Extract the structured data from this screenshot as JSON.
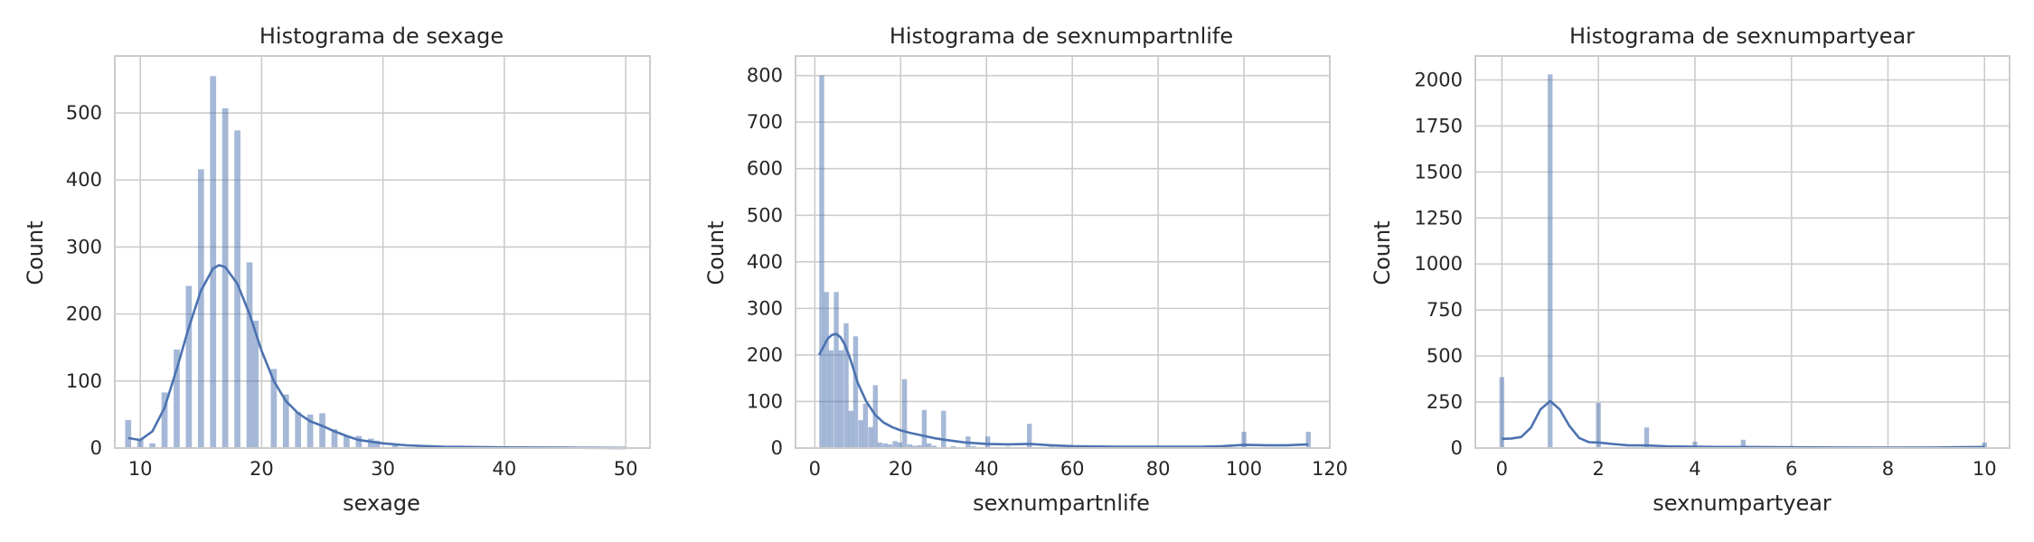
{
  "chart_data": [
    {
      "type": "bar",
      "title": "Histograma de sexage",
      "xlabel": "sexage",
      "ylabel": "Count",
      "xlim": [
        7.9,
        52
      ],
      "ylim": [
        0,
        585
      ],
      "xticks": [
        10,
        20,
        30,
        40,
        50
      ],
      "yticks": [
        0,
        100,
        200,
        300,
        400,
        500
      ],
      "grid": true,
      "bin_width": 0.5,
      "bars": [
        {
          "x": 9,
          "value": 42
        },
        {
          "x": 10,
          "value": 13
        },
        {
          "x": 11,
          "value": 7
        },
        {
          "x": 12,
          "value": 83
        },
        {
          "x": 13,
          "value": 147
        },
        {
          "x": 14,
          "value": 242
        },
        {
          "x": 15,
          "value": 416
        },
        {
          "x": 16,
          "value": 555
        },
        {
          "x": 17,
          "value": 507
        },
        {
          "x": 18,
          "value": 474
        },
        {
          "x": 19,
          "value": 277
        },
        {
          "x": 19.5,
          "value": 190
        },
        {
          "x": 21,
          "value": 118
        },
        {
          "x": 22,
          "value": 80
        },
        {
          "x": 23,
          "value": 54
        },
        {
          "x": 24,
          "value": 50
        },
        {
          "x": 25,
          "value": 52
        },
        {
          "x": 26,
          "value": 28
        },
        {
          "x": 27,
          "value": 18
        },
        {
          "x": 28,
          "value": 18
        },
        {
          "x": 29,
          "value": 14
        },
        {
          "x": 29.5,
          "value": 11
        },
        {
          "x": 31,
          "value": 4
        },
        {
          "x": 33,
          "value": 2
        },
        {
          "x": 35,
          "value": 2
        },
        {
          "x": 38,
          "value": 1
        },
        {
          "x": 40,
          "value": 1
        },
        {
          "x": 45,
          "value": 1
        },
        {
          "x": 50,
          "value": 1
        }
      ],
      "kde": {
        "x": [
          9,
          10,
          11,
          12,
          13,
          14,
          15,
          16,
          16.5,
          17,
          18,
          19,
          20,
          21,
          22,
          23,
          24,
          25,
          26,
          27,
          28,
          30,
          32,
          35,
          40,
          45,
          50
        ],
        "y": [
          15,
          12,
          25,
          60,
          118,
          180,
          235,
          268,
          273,
          270,
          245,
          200,
          145,
          100,
          70,
          52,
          40,
          33,
          25,
          18,
          12,
          7,
          4,
          2,
          1,
          0.5,
          0.2
        ]
      }
    },
    {
      "type": "bar",
      "title": "Histograma de sexnumpartnlife",
      "xlabel": "sexnumpartnlife",
      "ylabel": "Count",
      "xlim": [
        -4.5,
        120
      ],
      "ylim": [
        0,
        842
      ],
      "xticks": [
        0,
        20,
        40,
        60,
        80,
        100,
        120
      ],
      "yticks": [
        0,
        100,
        200,
        300,
        400,
        500,
        600,
        700,
        800
      ],
      "grid": true,
      "bin_width": 1.14,
      "bars": [
        {
          "x": 1.6,
          "value": 800
        },
        {
          "x": 2.7,
          "value": 335
        },
        {
          "x": 3.8,
          "value": 210
        },
        {
          "x": 5,
          "value": 335
        },
        {
          "x": 6.1,
          "value": 210
        },
        {
          "x": 7.3,
          "value": 268
        },
        {
          "x": 8.4,
          "value": 80
        },
        {
          "x": 9.5,
          "value": 240
        },
        {
          "x": 10.7,
          "value": 60
        },
        {
          "x": 11.8,
          "value": 95
        },
        {
          "x": 13,
          "value": 45
        },
        {
          "x": 14.1,
          "value": 135
        },
        {
          "x": 15.2,
          "value": 12
        },
        {
          "x": 16.4,
          "value": 10
        },
        {
          "x": 17.5,
          "value": 8
        },
        {
          "x": 18.7,
          "value": 15
        },
        {
          "x": 19.8,
          "value": 12
        },
        {
          "x": 20.9,
          "value": 148
        },
        {
          "x": 22.1,
          "value": 8
        },
        {
          "x": 23.2,
          "value": 5
        },
        {
          "x": 24.4,
          "value": 6
        },
        {
          "x": 25.5,
          "value": 82
        },
        {
          "x": 26.6,
          "value": 10
        },
        {
          "x": 27.8,
          "value": 5
        },
        {
          "x": 30,
          "value": 80
        },
        {
          "x": 32.3,
          "value": 4
        },
        {
          "x": 35.7,
          "value": 25
        },
        {
          "x": 37,
          "value": 4
        },
        {
          "x": 40.3,
          "value": 25
        },
        {
          "x": 45,
          "value": 3
        },
        {
          "x": 50,
          "value": 52
        },
        {
          "x": 55,
          "value": 3
        },
        {
          "x": 60,
          "value": 6
        },
        {
          "x": 65,
          "value": 2
        },
        {
          "x": 70,
          "value": 3
        },
        {
          "x": 75,
          "value": 2
        },
        {
          "x": 80,
          "value": 5
        },
        {
          "x": 85,
          "value": 2
        },
        {
          "x": 90,
          "value": 3
        },
        {
          "x": 100,
          "value": 35
        },
        {
          "x": 115,
          "value": 35
        }
      ],
      "kde": {
        "x": [
          1,
          2,
          3,
          4,
          5,
          6,
          7,
          8,
          9,
          10,
          12,
          14,
          16,
          18,
          20,
          22,
          25,
          28,
          30,
          35,
          40,
          45,
          50,
          55,
          60,
          70,
          80,
          90,
          95,
          100,
          105,
          110,
          115
        ],
        "y": [
          200,
          218,
          235,
          243,
          245,
          238,
          222,
          198,
          170,
          140,
          100,
          72,
          55,
          45,
          38,
          33,
          27,
          21,
          18,
          12,
          9,
          8,
          9,
          6,
          4,
          3,
          3,
          3,
          4,
          7,
          6,
          6,
          8
        ]
      }
    },
    {
      "type": "bar",
      "title": "Histograma de sexnumpartyear",
      "xlabel": "sexnumpartyear",
      "ylabel": "Count",
      "xlim": [
        -0.55,
        10.52
      ],
      "ylim": [
        0,
        2130
      ],
      "xticks": [
        0,
        2,
        4,
        6,
        8,
        10
      ],
      "yticks": [
        0,
        250,
        500,
        750,
        1000,
        1250,
        1500,
        1750,
        2000
      ],
      "grid": true,
      "bin_width": 0.1,
      "bars": [
        {
          "x": 0,
          "value": 385
        },
        {
          "x": 1,
          "value": 2030
        },
        {
          "x": 2,
          "value": 245
        },
        {
          "x": 3,
          "value": 112
        },
        {
          "x": 4,
          "value": 35
        },
        {
          "x": 5,
          "value": 45
        },
        {
          "x": 6,
          "value": 12
        },
        {
          "x": 8,
          "value": 5
        },
        {
          "x": 10,
          "value": 30
        }
      ],
      "kde": {
        "x": [
          0,
          0.2,
          0.4,
          0.6,
          0.8,
          1,
          1.2,
          1.4,
          1.6,
          1.8,
          2,
          2.3,
          2.6,
          3,
          3.4,
          4,
          4.5,
          5,
          6,
          7,
          8,
          9,
          10
        ],
        "y": [
          50,
          52,
          60,
          110,
          210,
          255,
          210,
          120,
          55,
          32,
          30,
          22,
          15,
          14,
          10,
          7,
          6,
          6,
          4,
          3,
          2,
          3,
          6
        ]
      }
    }
  ]
}
